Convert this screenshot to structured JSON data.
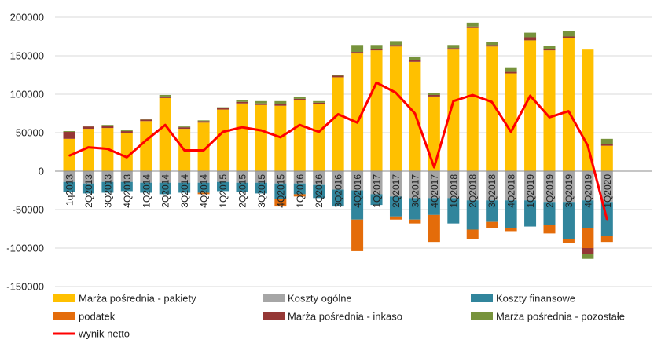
{
  "chart_data": {
    "type": "bar",
    "stacked": true,
    "categories": [
      "1q2013",
      "2Q2013",
      "3Q2013",
      "4Q2013",
      "1Q2014",
      "2Q2014",
      "3Q2014",
      "4Q2014",
      "1Q2015",
      "2Q2015",
      "3Q2015",
      "4Q2015",
      "1Q2016",
      "2Q2016",
      "3Q2016",
      "4Q2016",
      "1Q2017",
      "2Q2017",
      "3Q2017",
      "4Q2017",
      "1Q2018",
      "2Q2018",
      "3Q2018",
      "4Q2018",
      "1Q2019",
      "2Q2019",
      "3Q2019",
      "4Q2019",
      "1Q2020"
    ],
    "ylim": [
      -150000,
      200000
    ],
    "yticks": [
      "200000",
      "150000",
      "100000",
      "50000",
      "0",
      "-50000",
      "-100000",
      "-150000"
    ],
    "grid": true,
    "legend_position": "bottom",
    "series": [
      {
        "name": "Marża pośrednia - pakiety",
        "kind": "bar",
        "color": "#FFC000",
        "values": [
          42000,
          55000,
          56000,
          50000,
          65000,
          95000,
          55000,
          63000,
          80000,
          88000,
          86000,
          85000,
          92000,
          87000,
          122000,
          153000,
          157000,
          162000,
          142000,
          97000,
          158000,
          186000,
          162000,
          127000,
          170000,
          157000,
          173000,
          158000,
          33000
        ]
      },
      {
        "name": "Marża pośrednia - inkaso",
        "kind": "bar",
        "color": "#953735",
        "values": [
          9000,
          3000,
          3000,
          2000,
          2000,
          2000,
          2000,
          2000,
          2000,
          2000,
          2000,
          2000,
          2000,
          2000,
          2000,
          2000,
          2000,
          2000,
          2000,
          2000,
          2000,
          2000,
          2000,
          2000,
          4000,
          2000,
          2000,
          0,
          2000
        ]
      },
      {
        "name": "Marża pośrednia - pozostałe",
        "kind": "bar",
        "color": "#77933C",
        "values": [
          1000,
          1000,
          1000,
          1000,
          1000,
          2000,
          1000,
          1000,
          1000,
          2000,
          3000,
          4000,
          2000,
          2000,
          1000,
          9000,
          5000,
          5000,
          4000,
          3000,
          4000,
          5000,
          4000,
          6000,
          6000,
          4000,
          7000,
          0,
          7000
        ]
      },
      {
        "name": "Koszty ogólne",
        "kind": "bar",
        "color": "#A6A6A6",
        "values": [
          -14000,
          -16000,
          -14000,
          -14000,
          -15000,
          -15000,
          -15000,
          -15000,
          -14000,
          -15000,
          -15000,
          -16000,
          -16000,
          -18000,
          -24000,
          -25000,
          -30000,
          -33000,
          -35000,
          -35000,
          -35000,
          -38000,
          -38000,
          -38000,
          -38000,
          -40000,
          -40000,
          -38000,
          -40000
        ]
      },
      {
        "name": "Koszty finansowe",
        "kind": "bar",
        "color": "#31859C",
        "values": [
          -13000,
          -13000,
          -14000,
          -12000,
          -13000,
          -15000,
          -13000,
          -13000,
          -12000,
          -12000,
          -14000,
          -20000,
          -14000,
          -17000,
          -22000,
          -38000,
          -14000,
          -26000,
          -28000,
          -22000,
          -33000,
          -38000,
          -28000,
          -36000,
          -34000,
          -30000,
          -48000,
          -36000,
          -44000
        ]
      },
      {
        "name": "podatek",
        "kind": "bar",
        "color": "#E46C0A",
        "values": [
          0,
          0,
          0,
          0,
          0,
          0,
          0,
          -2000,
          0,
          0,
          0,
          -10000,
          -3000,
          0,
          0,
          -41000,
          0,
          -4000,
          -5000,
          -35000,
          0,
          -12000,
          -8000,
          -4000,
          0,
          -11000,
          -5000,
          -26000,
          -8000
        ]
      },
      {
        "name": "Marża pośrednia - inkaso (ujemna)",
        "kind": "bar",
        "color": "#953735",
        "legend": false,
        "values": [
          0,
          0,
          0,
          0,
          0,
          0,
          0,
          0,
          0,
          0,
          0,
          0,
          0,
          0,
          0,
          0,
          0,
          0,
          0,
          0,
          0,
          0,
          0,
          0,
          0,
          0,
          0,
          -8000,
          0
        ]
      },
      {
        "name": "Marża pośrednia - pozostałe (ujemna)",
        "kind": "bar",
        "color": "#77933C",
        "legend": false,
        "values": [
          0,
          0,
          0,
          0,
          0,
          0,
          0,
          0,
          0,
          0,
          0,
          0,
          0,
          0,
          0,
          0,
          0,
          0,
          0,
          0,
          0,
          0,
          0,
          0,
          0,
          0,
          0,
          -6000,
          0
        ]
      },
      {
        "name": "wynik netto",
        "kind": "line",
        "color": "#FF0000",
        "values": [
          20000,
          31000,
          29000,
          18000,
          40000,
          60000,
          27000,
          27000,
          51000,
          57000,
          53000,
          44000,
          60000,
          51000,
          74000,
          63000,
          115000,
          102000,
          75000,
          5000,
          91000,
          99000,
          90000,
          51000,
          98000,
          70000,
          78000,
          33000,
          -63000
        ]
      }
    ],
    "legend": [
      {
        "label": "Marża pośrednia - pakiety",
        "color": "#FFC000",
        "kind": "box"
      },
      {
        "label": "Koszty ogólne",
        "color": "#A6A6A6",
        "kind": "box"
      },
      {
        "label": "Koszty finansowe",
        "color": "#31859C",
        "kind": "box"
      },
      {
        "label": "podatek",
        "color": "#E46C0A",
        "kind": "box"
      },
      {
        "label": "Marża pośrednia - inkaso",
        "color": "#953735",
        "kind": "box"
      },
      {
        "label": "Marża pośrednia - pozostałe",
        "color": "#77933C",
        "kind": "box"
      },
      {
        "label": "wynik netto",
        "color": "#FF0000",
        "kind": "line"
      }
    ]
  }
}
